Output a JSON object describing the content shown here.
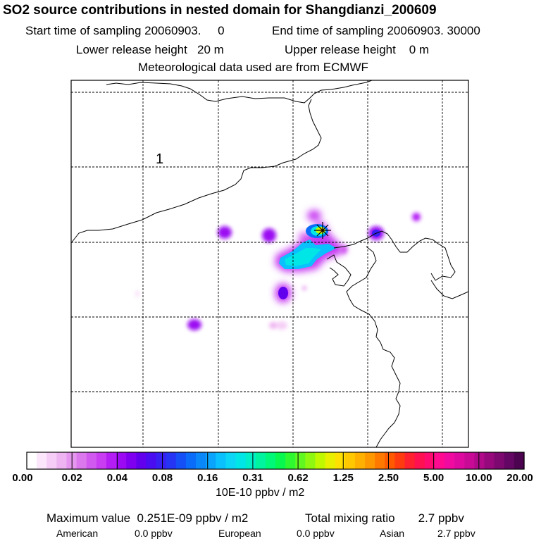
{
  "header": {
    "title": "SO2 source contributions in nested domain for Shangdianzi_200609",
    "start_label": "Start time of sampling 20060903.",
    "start_value": "0",
    "end_label": "End time of sampling 20060903. 30000",
    "lower_label": "Lower release height",
    "lower_value": "20 m",
    "upper_label": "Upper release height",
    "upper_value": "0 m",
    "met_note": "Meteorological data used are from ECMWF"
  },
  "map": {
    "region_label": "1",
    "station_marker": "star-cross-icon"
  },
  "legend": {
    "ticks": [
      "0.00",
      "0.02",
      "0.04",
      "0.08",
      "0.16",
      "0.31",
      "0.62",
      "1.25",
      "2.50",
      "5.00",
      "10.00",
      "20.00"
    ],
    "units": "10E-10 ppbv / m2",
    "colors": [
      "#ffffff",
      "#fbe6fb",
      "#f5cdf6",
      "#eeb3f1",
      "#e596ee",
      "#dc78ee",
      "#d259ef",
      "#c83cf2",
      "#b41ef4",
      "#9b0af2",
      "#7f00f0",
      "#6200ee",
      "#4a0cf0",
      "#3820f2",
      "#2634f4",
      "#1450f6",
      "#0a6cf8",
      "#0a88fa",
      "#0aa4fc",
      "#0ac0fd",
      "#0cd6f6",
      "#00e6e6",
      "#00eec8",
      "#00f4a0",
      "#00f878",
      "#08f850",
      "#30f830",
      "#60f820",
      "#90f810",
      "#c0f800",
      "#e8f000",
      "#ffe000",
      "#ffc800",
      "#ffb000",
      "#ff9800",
      "#ff7800",
      "#ff5a00",
      "#ff3c10",
      "#ff2030",
      "#ff1050",
      "#ff0a70",
      "#ff0a90",
      "#f00aa0",
      "#de0aa0",
      "#c80a96",
      "#b00a8a",
      "#96087c",
      "#7c0870",
      "#640664",
      "#4c0450"
    ]
  },
  "summary": {
    "max_label": "Maximum value",
    "max_value": "0.251E-09 ppbv / m2",
    "total_label": "Total mixing ratio",
    "total_value": "2.7 ppbv",
    "regions": [
      {
        "name": "American",
        "value": "0.0 ppbv"
      },
      {
        "name": "European",
        "value": "0.0 ppbv"
      },
      {
        "name": "Asian",
        "value": "2.7 ppbv"
      }
    ]
  }
}
